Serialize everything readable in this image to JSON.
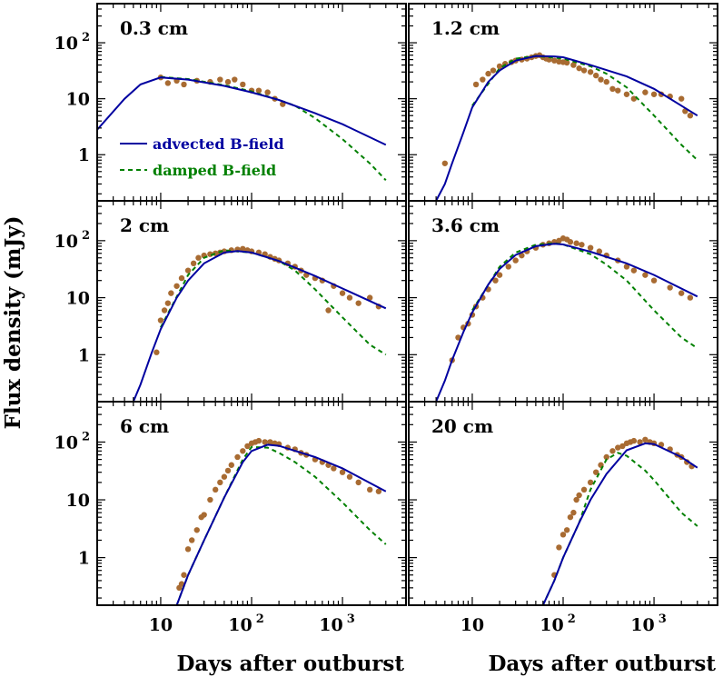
{
  "chart_data": {
    "type": "scatter",
    "ylabel": "Flux density (mJy)",
    "xlabel": "Days after outburst",
    "xscale": "log",
    "yscale": "log",
    "xlim": [
      2,
      5000
    ],
    "ylim": [
      0.15,
      500
    ],
    "x_ticks": [
      {
        "value": 10,
        "base": "10",
        "exp": ""
      },
      {
        "value": 100,
        "base": "10",
        "exp": "2"
      },
      {
        "value": 1000,
        "base": "10",
        "exp": "3"
      }
    ],
    "y_ticks": [
      {
        "value": 1,
        "base": "1",
        "exp": ""
      },
      {
        "value": 10,
        "base": "10",
        "exp": ""
      },
      {
        "value": 100,
        "base": "10",
        "exp": "2"
      }
    ],
    "colors": {
      "advected": "#0000a0",
      "damped": "#008000",
      "data": "#a86b32"
    },
    "legend": {
      "advected": "advected B-field",
      "damped": "damped B-field",
      "placement": "inside first panel, lower-left"
    },
    "panels": [
      {
        "label": "0.3 cm",
        "advected": {
          "x": [
            2,
            4,
            6,
            10,
            20,
            50,
            100,
            200,
            500,
            1000,
            3000
          ],
          "y": [
            2.8,
            10,
            18,
            24,
            22,
            17,
            13,
            9.5,
            5.5,
            3.5,
            1.5
          ]
        },
        "damped": {
          "x": [
            10,
            20,
            50,
            100,
            200,
            300,
            500,
            1000,
            2000,
            3000
          ],
          "y": [
            24.5,
            22.5,
            17.5,
            13.5,
            9.5,
            7.5,
            4.5,
            1.9,
            0.7,
            0.35
          ]
        },
        "points": {
          "x": [
            10,
            12,
            15,
            18,
            25,
            35,
            45,
            55,
            65,
            80,
            100,
            120,
            150,
            180,
            220
          ],
          "y": [
            24,
            19,
            21,
            18,
            21,
            20,
            22,
            20,
            22,
            18,
            14,
            14,
            13,
            10,
            8
          ]
        }
      },
      {
        "label": "1.2 cm",
        "advected": {
          "x": [
            4,
            5,
            6,
            8,
            10,
            15,
            20,
            30,
            50,
            80,
            100,
            200,
            500,
            1000,
            3000
          ],
          "y": [
            0.15,
            0.3,
            0.7,
            2.5,
            7,
            20,
            32,
            48,
            58,
            57,
            55,
            40,
            25,
            15,
            5
          ]
        },
        "damped": {
          "x": [
            10,
            20,
            30,
            50,
            100,
            200,
            300,
            500,
            1000,
            2000,
            3000
          ],
          "y": [
            7.5,
            35,
            52,
            58,
            52,
            38,
            28,
            16,
            5,
            1.5,
            0.8
          ]
        },
        "points": {
          "x": [
            5,
            11,
            13,
            15,
            17,
            20,
            23,
            27,
            30,
            35,
            40,
            45,
            50,
            55,
            60,
            65,
            70,
            80,
            90,
            100,
            110,
            130,
            150,
            170,
            200,
            230,
            260,
            300,
            350,
            400,
            500,
            600,
            800,
            1000,
            1200,
            1500,
            2000,
            2200,
            2500
          ],
          "y": [
            0.7,
            18,
            22,
            28,
            32,
            38,
            42,
            45,
            48,
            50,
            52,
            55,
            58,
            60,
            55,
            52,
            50,
            48,
            46,
            45,
            44,
            40,
            35,
            32,
            30,
            26,
            22,
            20,
            15,
            14,
            12,
            10,
            13,
            12,
            12,
            11,
            10,
            6,
            5
          ]
        }
      },
      {
        "label": "2 cm",
        "advected": {
          "x": [
            5,
            6,
            8,
            10,
            15,
            20,
            30,
            50,
            70,
            100,
            200,
            500,
            1000,
            3000
          ],
          "y": [
            0.15,
            0.3,
            1.1,
            2.8,
            10,
            20,
            40,
            62,
            66,
            62,
            44,
            24,
            14.5,
            6.5
          ]
        },
        "damped": {
          "x": [
            10,
            20,
            30,
            50,
            100,
            200,
            300,
            500,
            1000,
            2000,
            3000
          ],
          "y": [
            3,
            25,
            50,
            68,
            62,
            44,
            30,
            14,
            4.5,
            1.5,
            1
          ]
        },
        "points": {
          "x": [
            9,
            10,
            11,
            12,
            13,
            15,
            17,
            20,
            23,
            26,
            30,
            35,
            40,
            45,
            50,
            60,
            70,
            80,
            90,
            100,
            120,
            140,
            160,
            180,
            200,
            250,
            300,
            350,
            400,
            500,
            600,
            700,
            800,
            1000,
            1200,
            1500,
            2000,
            2500
          ],
          "y": [
            1.1,
            4,
            6,
            8,
            12,
            16,
            22,
            30,
            40,
            50,
            55,
            58,
            60,
            62,
            65,
            68,
            70,
            72,
            68,
            65,
            62,
            58,
            52,
            48,
            45,
            40,
            35,
            30,
            25,
            22,
            20,
            6,
            16,
            12,
            10,
            8,
            10,
            7
          ]
        }
      },
      {
        "label": "3.6 cm",
        "advected": {
          "x": [
            4,
            5,
            6,
            8,
            10,
            15,
            20,
            30,
            50,
            80,
            100,
            200,
            500,
            1000,
            3000
          ],
          "y": [
            0.15,
            0.35,
            0.8,
            2.5,
            5.5,
            17,
            32,
            56,
            80,
            88,
            86,
            64,
            40,
            25,
            10.5
          ]
        },
        "damped": {
          "x": [
            10,
            20,
            30,
            50,
            80,
            100,
            200,
            300,
            500,
            1000,
            2000,
            3000
          ],
          "y": [
            6,
            35,
            62,
            85,
            90,
            86,
            58,
            38,
            20,
            6,
            2,
            1.3
          ]
        },
        "points": {
          "x": [
            6,
            7,
            8,
            9,
            10,
            11,
            13,
            15,
            18,
            20,
            25,
            30,
            35,
            40,
            50,
            60,
            70,
            80,
            90,
            100,
            110,
            120,
            140,
            160,
            200,
            250,
            300,
            400,
            500,
            600,
            800,
            1000,
            1500,
            2000,
            2500
          ],
          "y": [
            0.8,
            2,
            3,
            3.5,
            5,
            7,
            10,
            14,
            20,
            25,
            35,
            45,
            55,
            65,
            75,
            85,
            90,
            95,
            100,
            110,
            105,
            95,
            90,
            85,
            75,
            65,
            55,
            45,
            35,
            30,
            25,
            20,
            15,
            12,
            10
          ]
        }
      },
      {
        "label": "6 cm",
        "advected": {
          "x": [
            15,
            20,
            30,
            50,
            80,
            100,
            150,
            200,
            500,
            1000,
            3000
          ],
          "y": [
            0.15,
            0.5,
            2,
            11,
            45,
            70,
            90,
            86,
            55,
            35,
            14
          ]
        },
        "damped": {
          "x": [
            15,
            20,
            30,
            50,
            80,
            100,
            150,
            200,
            300,
            500,
            1000,
            2000,
            3000
          ],
          "y": [
            0.15,
            0.5,
            2,
            11,
            50,
            82,
            80,
            65,
            45,
            25,
            9,
            3,
            1.7
          ]
        },
        "points": {
          "x": [
            16,
            17,
            18,
            20,
            22,
            25,
            28,
            30,
            35,
            40,
            45,
            50,
            55,
            60,
            70,
            80,
            90,
            100,
            110,
            120,
            140,
            160,
            180,
            200,
            250,
            300,
            350,
            400,
            500,
            600,
            700,
            800,
            1000,
            1200,
            1500,
            2000,
            2500
          ],
          "y": [
            0.3,
            0.35,
            0.5,
            1.4,
            2,
            3,
            5,
            5.5,
            10,
            15,
            20,
            25,
            32,
            40,
            55,
            70,
            85,
            95,
            100,
            105,
            100,
            100,
            95,
            92,
            80,
            75,
            65,
            60,
            50,
            45,
            40,
            35,
            30,
            25,
            20,
            15,
            14
          ]
        }
      },
      {
        "label": "20 cm",
        "advected": {
          "x": [
            60,
            80,
            100,
            150,
            200,
            300,
            500,
            800,
            1000,
            2000,
            3000
          ],
          "y": [
            0.15,
            0.4,
            1,
            4,
            10,
            28,
            72,
            95,
            92,
            55,
            36
          ]
        },
        "damped": {
          "x": [
            60,
            80,
            100,
            150,
            200,
            300,
            400,
            500,
            800,
            1000,
            2000,
            3000
          ],
          "y": [
            0.15,
            0.4,
            1,
            4,
            15,
            50,
            65,
            58,
            32,
            22,
            6,
            3.5
          ]
        },
        "points": {
          "x": [
            80,
            90,
            100,
            110,
            120,
            130,
            140,
            150,
            170,
            200,
            230,
            260,
            300,
            350,
            400,
            450,
            500,
            550,
            600,
            700,
            800,
            900,
            1000,
            1200,
            1500,
            1800,
            2000,
            2300,
            2600
          ],
          "y": [
            0.5,
            1.5,
            2.5,
            3,
            5,
            6,
            10,
            12,
            15,
            20,
            30,
            40,
            55,
            70,
            80,
            85,
            95,
            100,
            105,
            100,
            110,
            100,
            95,
            90,
            75,
            60,
            55,
            45,
            38
          ]
        }
      }
    ]
  }
}
